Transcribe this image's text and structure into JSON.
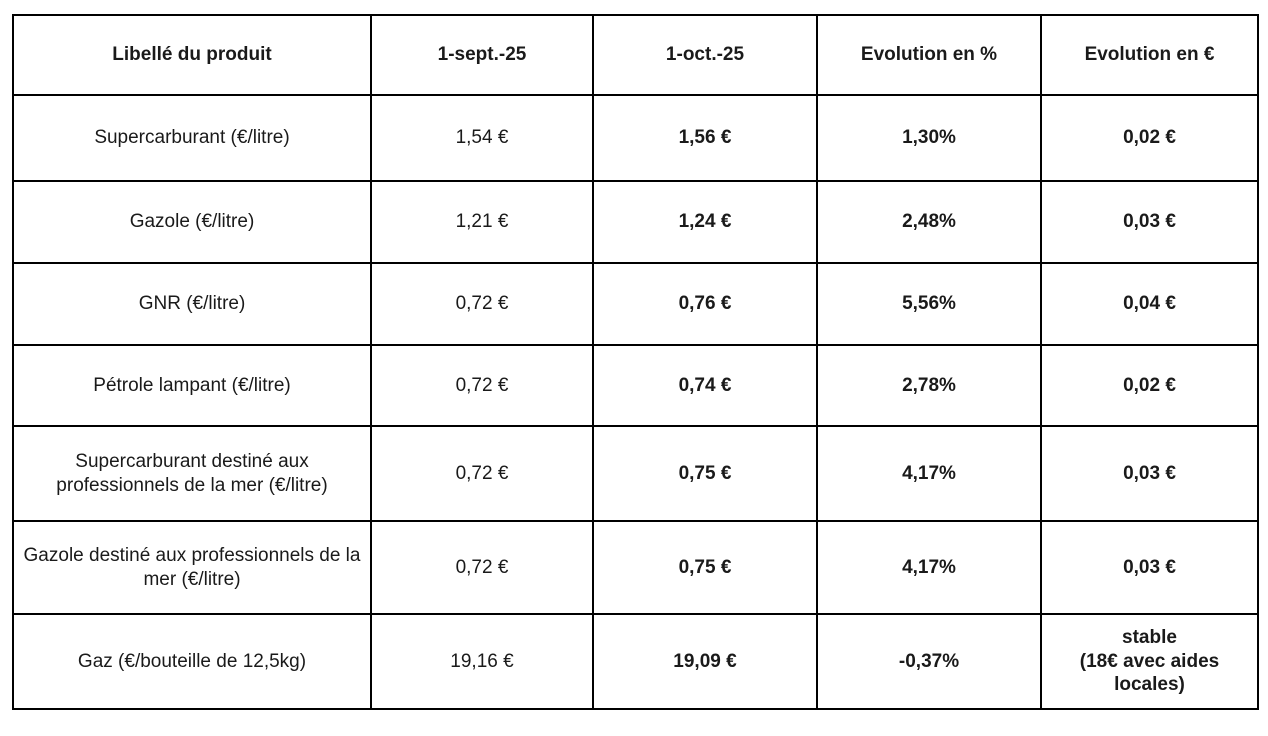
{
  "colors": {
    "background": "#ffffff",
    "border": "#000000",
    "text": "#1a1a1a"
  },
  "table": {
    "columns": [
      {
        "label": "Libellé du produit"
      },
      {
        "label": "1-sept.-25"
      },
      {
        "label": "1-oct.-25"
      },
      {
        "label": "Evolution en %"
      },
      {
        "label": "Evolution en €"
      }
    ],
    "rows": [
      {
        "product": "Supercarburant (€/litre)",
        "sept": "1,54 €",
        "oct": "1,56 €",
        "evol_pct": "1,30%",
        "evol_eur": "0,02 €"
      },
      {
        "product": "Gazole (€/litre)",
        "sept": "1,21 €",
        "oct": "1,24 €",
        "evol_pct": "2,48%",
        "evol_eur": "0,03 €"
      },
      {
        "product": "GNR (€/litre)",
        "sept": "0,72 €",
        "oct": "0,76 €",
        "evol_pct": "5,56%",
        "evol_eur": "0,04 €"
      },
      {
        "product": "Pétrole lampant (€/litre)",
        "sept": "0,72 €",
        "oct": "0,74 €",
        "evol_pct": "2,78%",
        "evol_eur": "0,02 €"
      },
      {
        "product": "Supercarburant destiné aux professionnels de la mer (€/litre)",
        "sept": "0,72 €",
        "oct": "0,75 €",
        "evol_pct": "4,17%",
        "evol_eur": "0,03 €"
      },
      {
        "product": "Gazole destiné aux professionnels de la mer (€/litre)",
        "sept": "0,72 €",
        "oct": "0,75 €",
        "evol_pct": "4,17%",
        "evol_eur": "0,03 €"
      },
      {
        "product": "Gaz (€/bouteille de 12,5kg)",
        "sept": "19,16 €",
        "oct": "19,09 €",
        "evol_pct": "-0,37%",
        "evol_eur": "stable\n(18€ avec aides locales)"
      }
    ]
  },
  "chart_data": {
    "type": "table",
    "title": "",
    "columns": [
      "Libellé du produit",
      "1-sept.-25",
      "1-oct.-25",
      "Evolution en %",
      "Evolution en €"
    ],
    "rows": [
      [
        "Supercarburant (€/litre)",
        "1,54 €",
        "1,56 €",
        "1,30%",
        "0,02 €"
      ],
      [
        "Gazole (€/litre)",
        "1,21 €",
        "1,24 €",
        "2,48%",
        "0,03 €"
      ],
      [
        "GNR (€/litre)",
        "0,72 €",
        "0,76 €",
        "5,56%",
        "0,04 €"
      ],
      [
        "Pétrole lampant (€/litre)",
        "0,72 €",
        "0,74 €",
        "2,78%",
        "0,02 €"
      ],
      [
        "Supercarburant destiné aux professionnels de la mer (€/litre)",
        "0,72 €",
        "0,75 €",
        "4,17%",
        "0,03 €"
      ],
      [
        "Gazole destiné aux professionnels de la mer (€/litre)",
        "0,72 €",
        "0,75 €",
        "4,17%",
        "0,03 €"
      ],
      [
        "Gaz (€/bouteille de 12,5kg)",
        "19,16 €",
        "19,09 €",
        "-0,37%",
        "stable (18€ avec aides locales)"
      ]
    ]
  }
}
